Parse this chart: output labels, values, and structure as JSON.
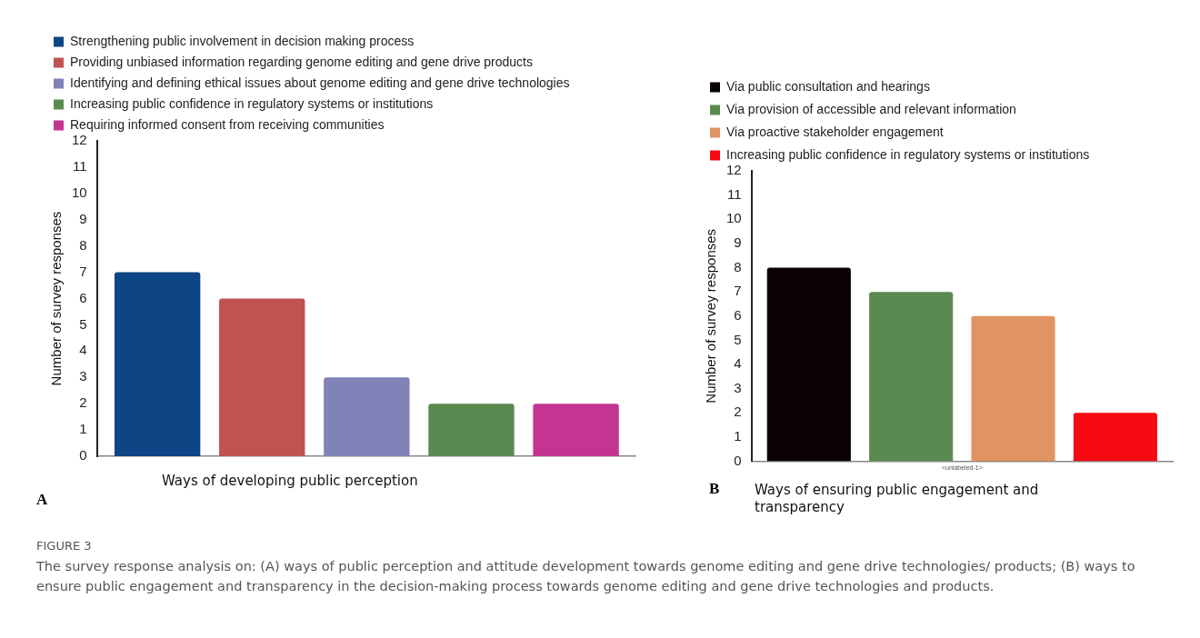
{
  "chart_data": [
    {
      "type": "bar",
      "categories": [
        null
      ],
      "xlabel": "Ways of developing public perception",
      "ylabel": "Number of survey responses",
      "ylim": [
        0,
        12
      ],
      "yticks": [
        0,
        1,
        2,
        3,
        4,
        5,
        6,
        7,
        8,
        9,
        10,
        11,
        12
      ],
      "grid": false,
      "legend": "top left",
      "tick_labels": "y",
      "annotations": [
        "A",
        "FIGURE 3",
        "The survey response analysis on: (A) ways of public perception and attitude development towards genome editing and gene drive technologies/ products; (B) ways to ensure public engagement and transparency in the decision-making process towards genome editing and gene drive technologies and products."
      ],
      "series": [
        {
          "name": "Strengthening public involvement in decision making process",
          "color": "#0e4585",
          "values": [
            7
          ]
        },
        {
          "name": "Providing unbiased information regarding genome editing and gene drive products",
          "color": "#c05252",
          "values": [
            6
          ]
        },
        {
          "name": "Identifying and defining ethical issues about genome editing and gene drive technologies",
          "color": "#8082b8",
          "values": [
            3
          ]
        },
        {
          "name": "Increasing public confidence in regulatory systems or institutions",
          "color": "#5a8a50",
          "values": [
            2
          ]
        },
        {
          "name": "Requiring informed consent from receiving communities",
          "color": "#c43592",
          "values": [
            2
          ]
        }
      ]
    },
    {
      "type": "bar",
      "categories": [
        "<unlabeled-1>"
      ],
      "xlabel": "Ways of ensuring public engagement and transparency",
      "ylabel": "Number of survey responses",
      "ylim": [
        0,
        12
      ],
      "yticks": [
        0,
        1,
        2,
        3,
        4,
        5,
        6,
        7,
        8,
        9,
        10,
        11,
        12
      ],
      "grid": false,
      "legend": "top left",
      "annotations": [
        "B"
      ],
      "series": [
        {
          "name": "Via public consultation and hearings",
          "color": "#0a0203",
          "values": [
            8
          ]
        },
        {
          "name": "Via provision of accessible and relevant information",
          "color": "#5a8a50",
          "values": [
            7
          ]
        },
        {
          "name": "Via proactive stakeholder engagement",
          "color": "#e09462",
          "values": [
            6
          ]
        },
        {
          "name": "Increasing public confidence in regulatory systems or institutions",
          "color": "#f50a14",
          "values": [
            2
          ]
        }
      ]
    }
  ]
}
